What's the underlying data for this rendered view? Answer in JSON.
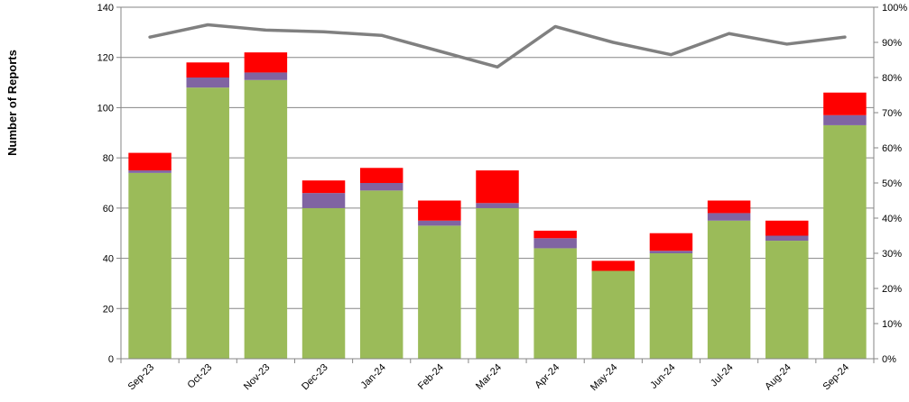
{
  "chart_data": {
    "type": "bar",
    "stacked": true,
    "categories": [
      "Sep-23",
      "Oct-23",
      "Nov-23",
      "Dec-23",
      "Jan-24",
      "Feb-24",
      "Mar-24",
      "Apr-24",
      "May-24",
      "Jun-24",
      "Jul-24",
      "Aug-24",
      "Sep-24"
    ],
    "series": [
      {
        "values": [
          74,
          108,
          111,
          60,
          67,
          53,
          60,
          44,
          35,
          42,
          55,
          47,
          93
        ],
        "color": "#9BBB59"
      },
      {
        "values": [
          1,
          4,
          3,
          6,
          3,
          2,
          2,
          4,
          0,
          1,
          3,
          2,
          4
        ],
        "color": "#8064A2"
      },
      {
        "values": [
          7,
          6,
          8,
          5,
          6,
          8,
          13,
          3,
          4,
          7,
          5,
          6,
          9
        ],
        "color": "#FF0000"
      }
    ],
    "line_series": {
      "axis": "right",
      "color": "#808080",
      "values": [
        91.5,
        95,
        93.5,
        93,
        92,
        87.5,
        83,
        94.5,
        90,
        86.5,
        92.5,
        89.5,
        91.5
      ]
    },
    "title": "",
    "xlabel": "",
    "ylabel": "Number of Reports",
    "ylim": [
      0,
      140
    ],
    "yticks": [
      0,
      20,
      40,
      60,
      80,
      100,
      120,
      140
    ],
    "y2lim": [
      0,
      100
    ],
    "y2ticks": [
      "0%",
      "10%",
      "20%",
      "30%",
      "40%",
      "50%",
      "60%",
      "70%",
      "80%",
      "90%",
      "100%"
    ],
    "grid": true,
    "legend": "none"
  }
}
